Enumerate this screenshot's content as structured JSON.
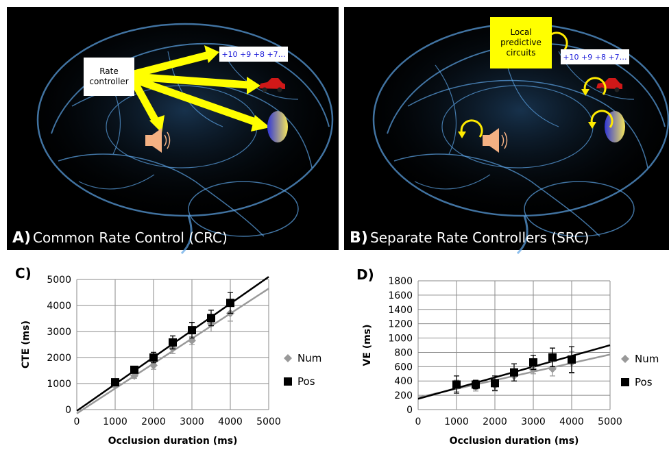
{
  "panels": [
    {
      "label": "A)",
      "caption": "Common Rate Control (CRC)",
      "controller": "Rate controller",
      "digits": "+10 +9 +8 +7…"
    },
    {
      "label": "B)",
      "caption": "Separate Rate Controllers (SRC)",
      "controller": "Local predictive circuits",
      "digits": "+10 +9 +8 +7…"
    }
  ],
  "chart_data": [
    {
      "type": "scatter",
      "panel_label": "C)",
      "x_label": "Occlusion duration (ms)",
      "y_label": "CTE (ms)",
      "x": [
        1000,
        1500,
        2000,
        2500,
        3000,
        3500,
        4000
      ],
      "xlim": [
        0,
        5000
      ],
      "xticks": [
        0,
        1000,
        2000,
        3000,
        4000,
        5000
      ],
      "ylim": [
        0,
        5000
      ],
      "yticks": [
        0,
        1000,
        2000,
        3000,
        4000,
        5000
      ],
      "grid": true,
      "legend": "right",
      "series": [
        {
          "name": "Num",
          "color": "#999999",
          "marker": "diamond",
          "values": [
            950,
            1300,
            1700,
            2350,
            2650,
            3300,
            3700
          ],
          "errors": [
            100,
            100,
            150,
            200,
            150,
            300,
            300
          ],
          "trendline": {
            "x": [
              0,
              5000
            ],
            "y": [
              -150,
              4650
            ]
          }
        },
        {
          "name": "Pos",
          "color": "#000000",
          "marker": "square",
          "values": [
            1050,
            1530,
            2000,
            2580,
            3050,
            3520,
            4100
          ],
          "errors": [
            50,
            100,
            200,
            250,
            300,
            300,
            400
          ],
          "trendline": {
            "x": [
              0,
              5000
            ],
            "y": [
              -50,
              5100
            ]
          }
        }
      ]
    },
    {
      "type": "scatter",
      "panel_label": "D)",
      "x_label": "Occlusion duration (ms)",
      "y_label": "VE (ms)",
      "x": [
        1000,
        1500,
        2000,
        2500,
        3000,
        3500,
        4000
      ],
      "xlim": [
        0,
        5000
      ],
      "xticks": [
        0,
        1000,
        2000,
        3000,
        4000,
        5000
      ],
      "ylim": [
        0,
        1800
      ],
      "yticks": [
        0,
        200,
        400,
        600,
        800,
        1000,
        1200,
        1400,
        1600,
        1800
      ],
      "grid": true,
      "legend": "right",
      "series": [
        {
          "name": "Num",
          "color": "#999999",
          "marker": "diamond",
          "values": [
            330,
            320,
            340,
            470,
            560,
            570,
            660
          ],
          "errors": [
            80,
            60,
            80,
            70,
            60,
            100,
            150
          ],
          "trendline": {
            "x": [
              0,
              5000
            ],
            "y": [
              170,
              770
            ]
          }
        },
        {
          "name": "Pos",
          "color": "#000000",
          "marker": "square",
          "values": [
            350,
            350,
            370,
            520,
            660,
            730,
            700
          ],
          "errors": [
            120,
            60,
            100,
            120,
            100,
            130,
            180
          ],
          "trendline": {
            "x": [
              0,
              5000
            ],
            "y": [
              150,
              900
            ]
          }
        }
      ]
    }
  ]
}
